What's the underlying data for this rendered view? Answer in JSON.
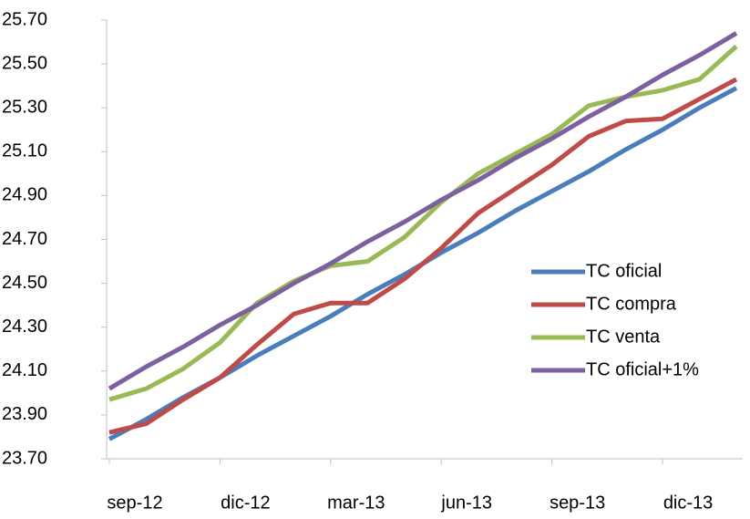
{
  "chart_data": {
    "type": "line",
    "categories": [
      "sep-12",
      null,
      null,
      "dic-12",
      null,
      null,
      "mar-13",
      null,
      null,
      "jun-13",
      null,
      null,
      "sep-13",
      null,
      null,
      "dic-13",
      null,
      null
    ],
    "series": [
      {
        "name": "TC oficial",
        "color": "#4a7ebb",
        "values": [
          23.79,
          23.88,
          23.98,
          24.07,
          24.17,
          24.26,
          24.35,
          24.45,
          24.54,
          24.64,
          24.73,
          24.83,
          24.92,
          25.01,
          25.11,
          25.2,
          25.3,
          25.39
        ]
      },
      {
        "name": "TC compra",
        "color": "#be4b48",
        "values": [
          23.82,
          23.86,
          23.97,
          24.07,
          24.22,
          24.36,
          24.41,
          24.41,
          24.52,
          24.66,
          24.82,
          24.93,
          25.04,
          25.17,
          25.24,
          25.25,
          25.34,
          25.43
        ]
      },
      {
        "name": "TC venta",
        "color": "#98b954",
        "values": [
          23.97,
          24.02,
          24.11,
          24.23,
          24.41,
          24.51,
          24.58,
          24.6,
          24.71,
          24.87,
          25.0,
          25.09,
          25.18,
          25.31,
          25.35,
          25.38,
          25.43,
          25.58
        ]
      },
      {
        "name": "TC oficial+1%",
        "color": "#7d60a0",
        "values": [
          24.02,
          24.12,
          24.21,
          24.31,
          24.4,
          24.5,
          24.59,
          24.69,
          24.78,
          24.88,
          24.97,
          25.07,
          25.16,
          25.26,
          25.35,
          25.45,
          25.54,
          25.64
        ]
      }
    ],
    "ylim": [
      23.7,
      25.7
    ],
    "yticks": [
      {
        "value": 23.7,
        "label": "23.70"
      },
      {
        "value": 23.9,
        "label": "23.90"
      },
      {
        "value": 24.1,
        "label": "24.10"
      },
      {
        "value": 24.3,
        "label": "24.30"
      },
      {
        "value": 24.5,
        "label": "24.50"
      },
      {
        "value": 24.7,
        "label": "24.70"
      },
      {
        "value": 24.9,
        "label": "24.90"
      },
      {
        "value": 25.1,
        "label": "25.10"
      },
      {
        "value": 25.3,
        "label": "25.30"
      },
      {
        "value": 25.5,
        "label": "25.50"
      },
      {
        "value": 25.7,
        "label": "25.70"
      }
    ],
    "legend": "right"
  }
}
